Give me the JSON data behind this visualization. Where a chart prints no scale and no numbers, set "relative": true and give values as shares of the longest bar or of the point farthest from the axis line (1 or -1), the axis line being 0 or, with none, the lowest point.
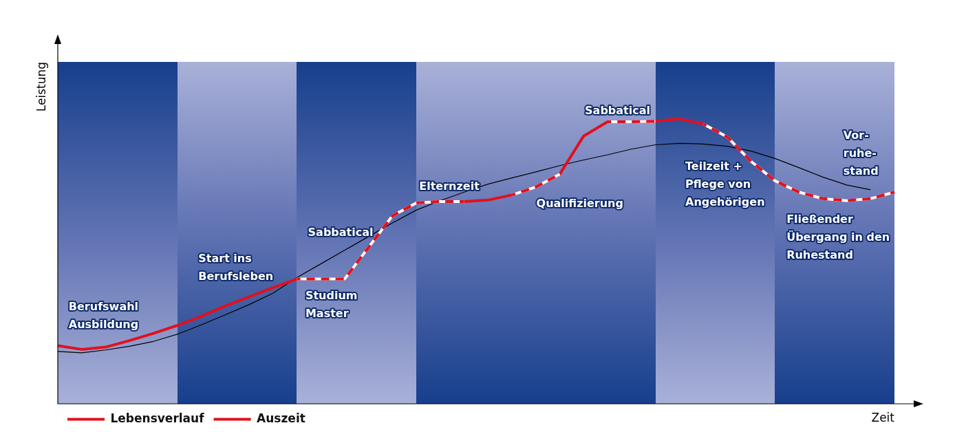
{
  "chart_data": {
    "type": "line",
    "relative": true,
    "xlabel": "Zeit",
    "ylabel": "Leistung",
    "legend": "bottom left",
    "marker": "none",
    "categories": [
      null,
      null,
      null,
      null,
      null,
      null,
      null,
      null,
      null,
      null,
      null,
      null,
      null,
      null,
      null,
      null,
      null,
      null,
      null,
      null,
      null,
      null,
      null,
      null,
      null,
      null,
      null,
      null,
      null,
      null,
      null,
      null,
      null,
      null,
      null,
      null
    ],
    "series": [
      {
        "name": "Lebensverlauf",
        "color": "#e2101e",
        "line_style": "solid",
        "values": [
          0.204,
          0.191,
          0.199,
          0.222,
          0.247,
          0.275,
          0.307,
          0.343,
          0.375,
          0.408,
          0.438,
          0.438,
          0.438,
          0.549,
          0.66,
          0.705,
          0.71,
          0.71,
          0.715,
          0.733,
          0.761,
          0.806,
          0.94,
          0.99,
          0.99,
          0.992,
          1.0,
          0.982,
          0.937,
          0.851,
          0.783,
          0.743,
          0.72,
          0.713,
          0.72,
          0.743
        ]
      },
      {
        "name": "Auszeit",
        "color": "#e2101e",
        "line_style": "dashed",
        "values": [
          null,
          null,
          null,
          null,
          null,
          null,
          null,
          null,
          null,
          null,
          0.438,
          0.438,
          0.438,
          0.549,
          0.66,
          0.705,
          0.71,
          0.71,
          null,
          0.733,
          0.761,
          0.806,
          null,
          0.99,
          0.99,
          0.992,
          null,
          0.982,
          0.937,
          0.851,
          0.783,
          0.743,
          0.72,
          0.713,
          0.72,
          0.743
        ]
      },
      {
        "color": "#000000",
        "line_style": "solid",
        "values": [
          0.184,
          0.179,
          0.189,
          0.202,
          0.219,
          0.244,
          0.277,
          0.312,
          0.348,
          0.388,
          0.443,
          0.491,
          0.539,
          0.587,
          0.635,
          0.68,
          0.713,
          0.743,
          0.771,
          0.793,
          0.814,
          0.836,
          0.856,
          0.874,
          0.894,
          0.909,
          0.914,
          0.912,
          0.904,
          0.887,
          0.861,
          0.829,
          0.796,
          0.768,
          0.751,
          null
        ]
      }
    ],
    "annotations": [
      "Berufswahl\nAusbildung",
      "Start ins\nBerufsleben",
      "Sabbatical",
      "Studium\nMaster",
      "Elternzeit",
      "Qualifizierung",
      "Sabbatical",
      "Teilzeit +\nPflege von\nAngehörigen",
      "Vor-\nruhe-\nstand",
      "Fließender\nÜbergang in den\nRuhestand"
    ]
  }
}
